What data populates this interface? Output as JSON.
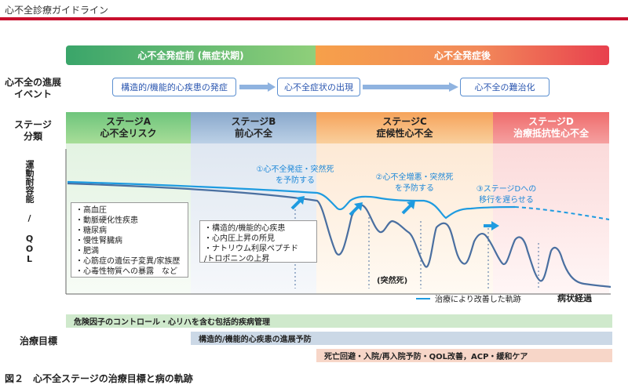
{
  "header": {
    "title": "心不全診療ガイドライン"
  },
  "banners": {
    "pre": "心不全発症前 (無症状期)",
    "post": "心不全発症後"
  },
  "rows": {
    "event_label": [
      "心不全の進展",
      "イベント"
    ],
    "stage_label": [
      "ステージ",
      "分類"
    ],
    "treatment_label": "治療目標"
  },
  "events": [
    "構造的/機能的心疾患の発症",
    "心不全症状の出現",
    "心不全の難治化"
  ],
  "stages": [
    {
      "name": "ステージA",
      "desc": "心不全リスク"
    },
    {
      "name": "ステージB",
      "desc": "前心不全"
    },
    {
      "name": "ステージC",
      "desc": "症候性心不全"
    },
    {
      "name": "ステージD",
      "desc": "治療抵抗性心不全"
    }
  ],
  "axes": {
    "y": "運動耐容能 / QOL",
    "x": "病状経過"
  },
  "annotations": [
    {
      "lines": [
        "①心不全発症・突然死",
        "を予防する"
      ]
    },
    {
      "lines": [
        "②心不全増悪・突然死",
        "を予防する"
      ]
    },
    {
      "lines": [
        "③ステージDへの",
        "移行を遅らせる"
      ]
    }
  ],
  "factors_a": [
    "・高血圧",
    "・動脈硬化性疾患",
    "・糖尿病",
    "・慢性腎臓病",
    "・肥満",
    "・心筋症の遺伝子変異/家族歴",
    "・心毒性物質への暴露　など"
  ],
  "factors_b": [
    "・構造的/機能的心疾患",
    "・心内圧上昇の所見",
    "・ナトリウム利尿ペプチド",
    "/トロポニンの上昇"
  ],
  "sudden_death": "(突然死)",
  "legend": "治療により改善した軌跡",
  "treatments": [
    "危険因子のコントロール・心リハを含む包括的疾病管理",
    "構造的/機能的心疾患の進展予防",
    "死亡回避・入院/再入院予防・QOL改善，ACP・緩和ケア"
  ],
  "caption": "図２　心不全ステージの治療目標と病の軌跡",
  "colors": {
    "accent_red": "#c8102e",
    "improved_curve": "#1e9be0",
    "natural_curve": "#4a6fa0"
  }
}
